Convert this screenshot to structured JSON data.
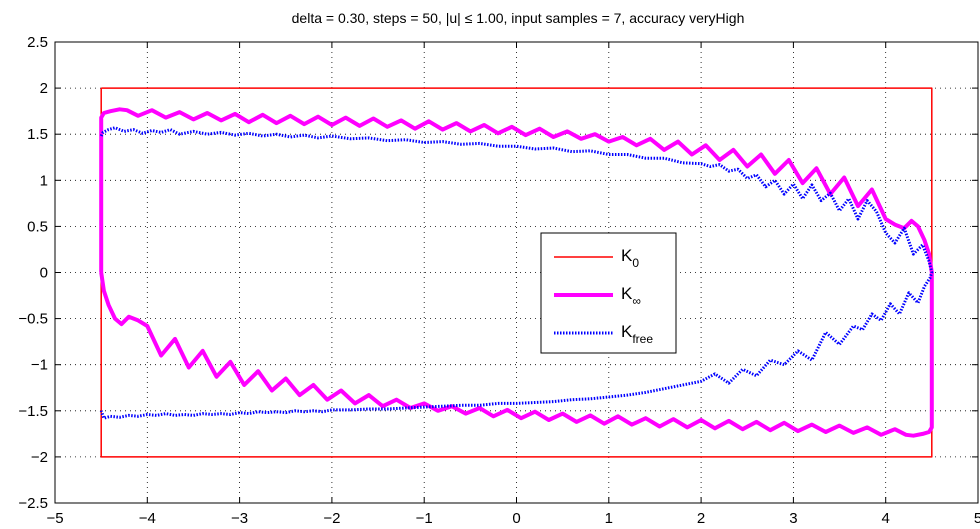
{
  "chart_data": {
    "type": "line",
    "title": "delta = 0.30, steps = 50, |u| ≤ 1.00, input samples = 7, accuracy veryHigh",
    "xlabel": "",
    "ylabel": "",
    "xlim": [
      -5,
      5
    ],
    "ylim": [
      -2.5,
      2.5
    ],
    "xticks": [
      -5,
      -4,
      -3,
      -2,
      -1,
      0,
      1,
      2,
      3,
      4,
      5
    ],
    "yticks": [
      -2.5,
      -2,
      -1.5,
      -1,
      -0.5,
      0,
      0.5,
      1,
      1.5,
      2,
      2.5
    ],
    "xtick_labels": [
      "−5",
      "−4",
      "−3",
      "−2",
      "−1",
      "0",
      "1",
      "2",
      "3",
      "4",
      "5"
    ],
    "ytick_labels": [
      "−2.5",
      "−2",
      "−1.5",
      "−1",
      "−0.5",
      "0",
      "0.5",
      "1",
      "1.5",
      "2",
      "2.5"
    ],
    "grid": true,
    "legend_position": "center-right",
    "series": [
      {
        "name": "K0",
        "legend_main": "K",
        "legend_sub": "0",
        "color": "#ff0000",
        "style": "solid-thin",
        "x": [
          -4.5,
          4.5,
          4.5,
          -4.5,
          -4.5
        ],
        "y": [
          2,
          2,
          -2,
          -2,
          2
        ]
      },
      {
        "name": "K∞",
        "legend_main": "K",
        "legend_sub": "∞",
        "color": "#ff00ff",
        "style": "solid-thick",
        "x": [
          -4.5,
          -4.5,
          -4.47,
          -4.4,
          -4.3,
          -4.22,
          -4.1,
          -3.95,
          -3.8,
          -3.65,
          -3.5,
          -3.35,
          -3.2,
          -3.05,
          -2.9,
          -2.75,
          -2.6,
          -2.45,
          -2.3,
          -2.15,
          -2.0,
          -1.85,
          -1.7,
          -1.55,
          -1.4,
          -1.25,
          -1.1,
          -0.95,
          -0.8,
          -0.65,
          -0.5,
          -0.35,
          -0.2,
          -0.05,
          0.1,
          0.25,
          0.4,
          0.55,
          0.7,
          0.85,
          1.0,
          1.15,
          1.3,
          1.45,
          1.6,
          1.75,
          1.9,
          2.05,
          2.2,
          2.35,
          2.5,
          2.65,
          2.8,
          2.95,
          3.1,
          3.25,
          3.4,
          3.55,
          3.7,
          3.85,
          4.0,
          4.1,
          4.2,
          4.28,
          4.35,
          4.42,
          4.47,
          4.5,
          4.5,
          4.47,
          4.4,
          4.3,
          4.22,
          4.1,
          3.95,
          3.8,
          3.65,
          3.5,
          3.35,
          3.2,
          3.05,
          2.9,
          2.75,
          2.6,
          2.45,
          2.3,
          2.15,
          2.0,
          1.85,
          1.7,
          1.55,
          1.4,
          1.25,
          1.1,
          0.95,
          0.8,
          0.65,
          0.5,
          0.35,
          0.2,
          0.05,
          -0.1,
          -0.25,
          -0.4,
          -0.55,
          -0.7,
          -0.85,
          -1.0,
          -1.15,
          -1.3,
          -1.45,
          -1.6,
          -1.75,
          -1.9,
          -2.05,
          -2.2,
          -2.35,
          -2.5,
          -2.65,
          -2.8,
          -2.95,
          -3.1,
          -3.25,
          -3.4,
          -3.55,
          -3.7,
          -3.85,
          -4.0,
          -4.1,
          -4.2,
          -4.28,
          -4.35,
          -4.42,
          -4.47,
          -4.5
        ],
        "y": [
          0,
          1.68,
          1.73,
          1.75,
          1.77,
          1.76,
          1.7,
          1.76,
          1.68,
          1.74,
          1.66,
          1.73,
          1.65,
          1.72,
          1.63,
          1.71,
          1.62,
          1.7,
          1.61,
          1.69,
          1.6,
          1.68,
          1.59,
          1.67,
          1.58,
          1.65,
          1.56,
          1.64,
          1.55,
          1.62,
          1.53,
          1.6,
          1.51,
          1.58,
          1.49,
          1.56,
          1.47,
          1.53,
          1.45,
          1.5,
          1.42,
          1.47,
          1.38,
          1.45,
          1.33,
          1.42,
          1.28,
          1.38,
          1.22,
          1.33,
          1.15,
          1.28,
          1.07,
          1.22,
          0.97,
          1.13,
          0.85,
          1.03,
          0.72,
          0.9,
          0.58,
          0.52,
          0.48,
          0.56,
          0.5,
          0.35,
          0.2,
          0,
          -1.68,
          -1.73,
          -1.75,
          -1.77,
          -1.76,
          -1.7,
          -1.76,
          -1.68,
          -1.74,
          -1.66,
          -1.73,
          -1.65,
          -1.72,
          -1.63,
          -1.71,
          -1.62,
          -1.7,
          -1.61,
          -1.69,
          -1.6,
          -1.68,
          -1.59,
          -1.67,
          -1.58,
          -1.65,
          -1.56,
          -1.64,
          -1.55,
          -1.62,
          -1.53,
          -1.6,
          -1.51,
          -1.58,
          -1.49,
          -1.56,
          -1.47,
          -1.53,
          -1.45,
          -1.5,
          -1.42,
          -1.47,
          -1.38,
          -1.45,
          -1.33,
          -1.42,
          -1.28,
          -1.38,
          -1.22,
          -1.33,
          -1.15,
          -1.28,
          -1.07,
          -1.22,
          -0.97,
          -1.13,
          -0.85,
          -1.03,
          -0.72,
          -0.9,
          -0.58,
          -0.52,
          -0.48,
          -0.56,
          -0.5,
          -0.35,
          -0.2,
          0
        ]
      },
      {
        "name": "Kfree",
        "legend_main": "K",
        "legend_sub": "free",
        "color": "#0000ff",
        "style": "dotted",
        "x": [
          -4.5,
          -4.48,
          -4.42,
          -4.35,
          -4.25,
          -4.15,
          -4.05,
          -3.95,
          -3.85,
          -3.75,
          -3.65,
          -3.5,
          -3.35,
          -3.2,
          -3.05,
          -2.9,
          -2.75,
          -2.6,
          -2.45,
          -2.3,
          -2.15,
          -2.0,
          -1.8,
          -1.6,
          -1.4,
          -1.2,
          -1.0,
          -0.8,
          -0.6,
          -0.4,
          -0.2,
          0.0,
          0.2,
          0.4,
          0.6,
          0.8,
          1.0,
          1.2,
          1.4,
          1.6,
          1.8,
          2.0,
          2.1,
          2.2,
          2.3,
          2.4,
          2.5,
          2.6,
          2.7,
          2.8,
          2.9,
          3.0,
          3.1,
          3.2,
          3.3,
          3.4,
          3.5,
          3.6,
          3.7,
          3.8,
          3.9,
          4.0,
          4.1,
          4.2,
          4.3,
          4.4,
          4.47,
          4.5,
          4.48,
          4.42,
          4.35,
          4.25,
          4.15,
          4.05,
          3.95,
          3.85,
          3.75,
          3.65,
          3.5,
          3.35,
          3.2,
          3.05,
          2.9,
          2.75,
          2.6,
          2.45,
          2.3,
          2.15,
          2.0,
          1.8,
          1.6,
          1.4,
          1.2,
          1.0,
          0.8,
          0.6,
          0.4,
          0.2,
          0.0,
          -0.2,
          -0.4,
          -0.6,
          -0.8,
          -1.0,
          -1.2,
          -1.4,
          -1.6,
          -1.8,
          -2.0,
          -2.1,
          -2.2,
          -2.3,
          -2.4,
          -2.5,
          -2.6,
          -2.7,
          -2.8,
          -2.9,
          -3.0,
          -3.1,
          -3.2,
          -3.3,
          -3.4,
          -3.5,
          -3.6,
          -3.7,
          -3.8,
          -3.9,
          -4.0,
          -4.1,
          -4.2,
          -4.3,
          -4.4,
          -4.47,
          -4.5
        ],
        "y": [
          1.48,
          1.52,
          1.55,
          1.57,
          1.53,
          1.55,
          1.51,
          1.54,
          1.52,
          1.55,
          1.5,
          1.53,
          1.5,
          1.52,
          1.49,
          1.51,
          1.48,
          1.5,
          1.47,
          1.49,
          1.46,
          1.48,
          1.45,
          1.46,
          1.43,
          1.44,
          1.41,
          1.42,
          1.39,
          1.4,
          1.37,
          1.37,
          1.34,
          1.35,
          1.31,
          1.32,
          1.28,
          1.28,
          1.24,
          1.24,
          1.19,
          1.18,
          1.15,
          1.17,
          1.1,
          1.12,
          1.02,
          1.06,
          0.93,
          1.0,
          0.85,
          0.96,
          0.8,
          0.95,
          0.78,
          0.86,
          0.67,
          0.8,
          0.58,
          0.78,
          0.66,
          0.43,
          0.32,
          0.48,
          0.2,
          0.3,
          0.12,
          0,
          -0.06,
          -0.15,
          -0.33,
          -0.22,
          -0.45,
          -0.34,
          -0.52,
          -0.45,
          -0.62,
          -0.58,
          -0.78,
          -0.65,
          -0.95,
          -0.85,
          -1.0,
          -0.95,
          -1.12,
          -1.05,
          -1.2,
          -1.1,
          -1.18,
          -1.22,
          -1.26,
          -1.3,
          -1.33,
          -1.35,
          -1.37,
          -1.38,
          -1.4,
          -1.41,
          -1.42,
          -1.42,
          -1.44,
          -1.44,
          -1.45,
          -1.46,
          -1.47,
          -1.48,
          -1.48,
          -1.49,
          -1.49,
          -1.51,
          -1.5,
          -1.51,
          -1.5,
          -1.52,
          -1.51,
          -1.52,
          -1.51,
          -1.53,
          -1.52,
          -1.54,
          -1.53,
          -1.54,
          -1.53,
          -1.55,
          -1.54,
          -1.55,
          -1.53,
          -1.55,
          -1.54,
          -1.56,
          -1.55,
          -1.57,
          -1.56,
          -1.58,
          -1.5
        ]
      }
    ]
  }
}
